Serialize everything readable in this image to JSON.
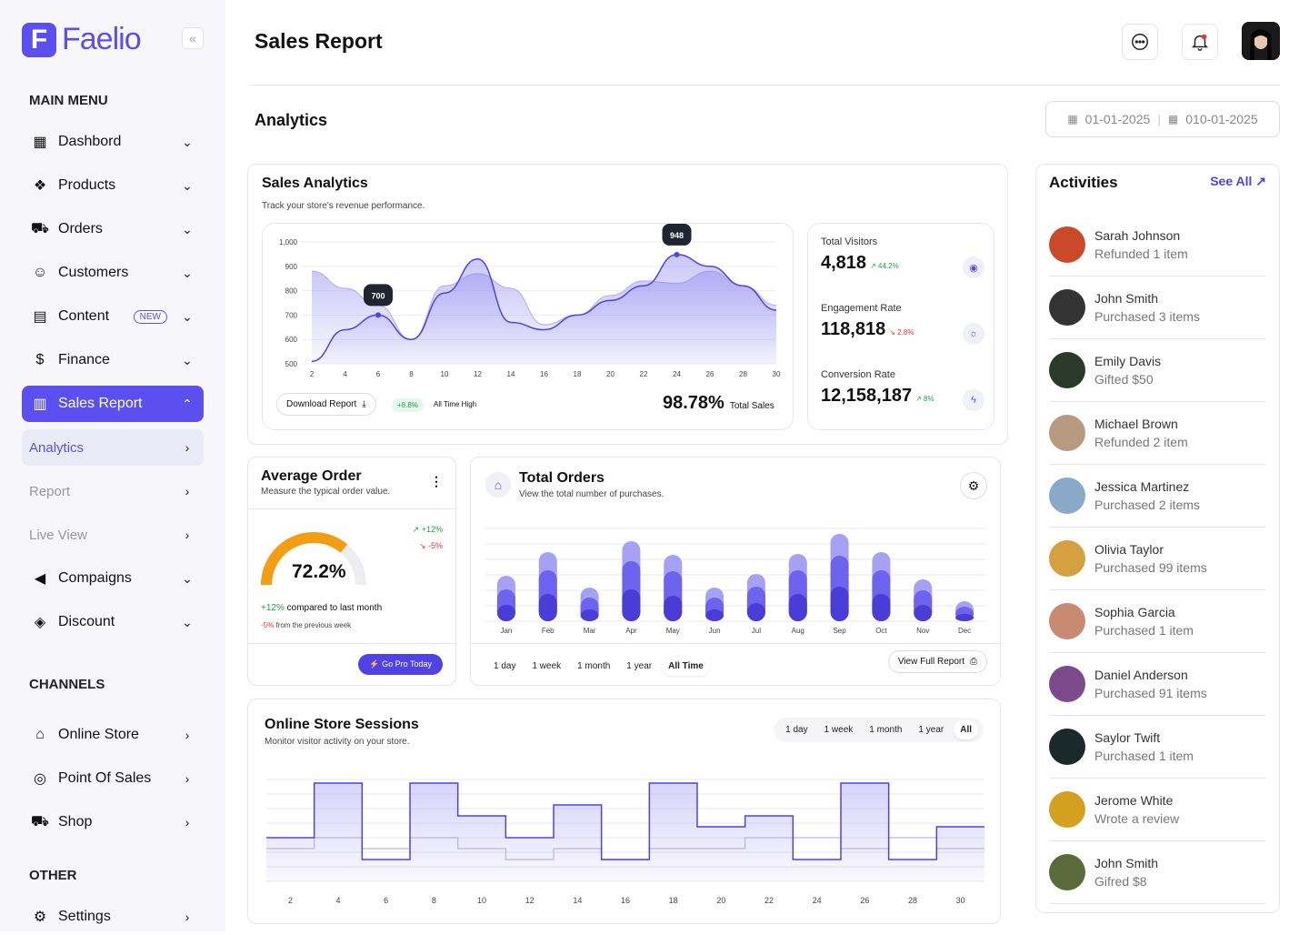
{
  "brand": {
    "name": "Faelio",
    "letter": "F"
  },
  "sidebar": {
    "main_menu_title": "MAIN MENU",
    "items": [
      {
        "label": "Dashbord",
        "icon": "dashboard-icon"
      },
      {
        "label": "Products",
        "icon": "products-icon"
      },
      {
        "label": "Orders",
        "icon": "basket-icon"
      },
      {
        "label": "Customers",
        "icon": "users-icon"
      },
      {
        "label": "Content",
        "icon": "document-icon",
        "badge": "NEW"
      },
      {
        "label": "Finance",
        "icon": "dollar-icon"
      },
      {
        "label": "Sales Report",
        "icon": "chart-icon"
      },
      {
        "label": "Analytics"
      },
      {
        "label": "Report"
      },
      {
        "label": "Live View"
      },
      {
        "label": "Compaigns",
        "icon": "megaphone-icon"
      },
      {
        "label": "Discount",
        "icon": "discount-tag-icon"
      }
    ],
    "channels_title": "CHANNELS",
    "channels": [
      {
        "label": "Online Store",
        "icon": "store-icon"
      },
      {
        "label": "Point Of Sales",
        "icon": "pos-icon"
      },
      {
        "label": "Shop",
        "icon": "cart-icon"
      }
    ],
    "other_title": "OTHER",
    "other": [
      {
        "label": "Settings",
        "icon": "settings-icon"
      }
    ]
  },
  "header": {
    "title": "Sales Report"
  },
  "analytics": {
    "title": "Analytics",
    "date_from": "01-01-2025",
    "date_to": "010-01-2025"
  },
  "sales_analytics": {
    "title": "Sales Analytics",
    "subtitle": "Track your store's revenue performance.",
    "download_label": "Download Report",
    "growth": "+8.8%",
    "all_time": "All Time High",
    "total_value": "98.78%",
    "total_label": "Total Sales",
    "tooltip1": "700",
    "tooltip2": "948"
  },
  "stats": [
    {
      "label": "Total Visitors",
      "value": "4,818",
      "change": "44.2%",
      "dir": "up",
      "icon": "eye-icon"
    },
    {
      "label": "Engagement Rate",
      "value": "118,818",
      "change": "2.8%",
      "dir": "down",
      "icon": "bulb-icon"
    },
    {
      "label": "Conversion Rate",
      "value": "12,158,187",
      "change": "8%",
      "dir": "up",
      "icon": "bolt-icon"
    }
  ],
  "average_order": {
    "title": "Average Order",
    "subtitle": "Measure the typical order value.",
    "value": "72.2%",
    "up": "+12%",
    "down": "-5%",
    "line1_val": "+12%",
    "line1_text": "compared to last month",
    "line2_val": "-5%",
    "line2_text": "from the previous week",
    "cta": "Go Pro Today",
    "progress": 0.722
  },
  "total_orders": {
    "title": "Total Orders",
    "subtitle": "View the total number of purchases.",
    "tabs": [
      "1 day",
      "1 week",
      "1 month",
      "1 year",
      "All Time"
    ],
    "view_full": "View Full Report"
  },
  "sessions": {
    "title": "Online Store Sessions",
    "subtitle": "Monitor visitor activity on your store.",
    "tabs": [
      "1 day",
      "1 week",
      "1 month",
      "1 year",
      "All"
    ]
  },
  "activities": {
    "title": "Activities",
    "see_all": "See All",
    "items": [
      {
        "name": "Sarah Johnson",
        "desc": "Refunded 1 item",
        "color": "#c84a2a"
      },
      {
        "name": "John Smith",
        "desc": "Purchased 3 items",
        "color": "#333"
      },
      {
        "name": "Emily Davis",
        "desc": "Gifted $50",
        "color": "#2a3a2a"
      },
      {
        "name": "Michael Brown",
        "desc": "Refunded 2 item",
        "color": "#b89a80"
      },
      {
        "name": "Jessica Martinez",
        "desc": "Purchased 2 items",
        "color": "#8aa8c8"
      },
      {
        "name": "Olivia Taylor",
        "desc": "Purchased 99 items",
        "color": "#d4a040"
      },
      {
        "name": "Sophia Garcia",
        "desc": "Purchased 1 item",
        "color": "#c88a70"
      },
      {
        "name": "Daniel Anderson",
        "desc": "Purchased 91 items",
        "color": "#7a4a8a"
      },
      {
        "name": "Saylor Twift",
        "desc": "Purchased 1 item",
        "color": "#1a2a2a"
      },
      {
        "name": "Jerome White",
        "desc": "Wrote a review",
        "color": "#d4a020"
      },
      {
        "name": "John Smith",
        "desc": "Gifred $8",
        "color": "#5a6a3a"
      }
    ]
  },
  "chart_data": [
    {
      "type": "area",
      "title": "Sales Analytics",
      "x": [
        2,
        4,
        6,
        8,
        10,
        12,
        14,
        16,
        18,
        20,
        22,
        24,
        26,
        28,
        30
      ],
      "ylim": [
        500,
        1000
      ],
      "yticks": [
        "1,000",
        "900",
        "800",
        "700",
        "600",
        "500"
      ],
      "series": [
        {
          "values": [
            510,
            640,
            700,
            600,
            790,
            930,
            670,
            640,
            700,
            760,
            820,
            948,
            900,
            820,
            720
          ]
        },
        {
          "values": [
            880,
            810,
            740,
            600,
            820,
            870,
            810,
            660,
            700,
            780,
            840,
            830,
            880,
            820,
            740
          ]
        }
      ]
    },
    {
      "type": "bar",
      "title": "Total Orders",
      "categories": [
        "Jan",
        "Feb",
        "Mar",
        "Apr",
        "May",
        "Jun",
        "Jul",
        "Aug",
        "Sep",
        "Oct",
        "Nov",
        "Dec"
      ],
      "series": [
        {
          "values": [
            50,
            76,
            37,
            88,
            73,
            37,
            52,
            74,
            96,
            76,
            46,
            22
          ]
        },
        {
          "values": [
            35,
            56,
            26,
            66,
            55,
            26,
            38,
            56,
            72,
            56,
            34,
            16
          ]
        },
        {
          "values": [
            18,
            30,
            13,
            35,
            28,
            13,
            20,
            30,
            38,
            30,
            18,
            8
          ]
        }
      ]
    },
    {
      "type": "area",
      "title": "Online Store Sessions",
      "x": [
        2,
        4,
        6,
        8,
        10,
        12,
        14,
        16,
        18,
        20,
        22,
        24,
        26,
        28,
        30
      ],
      "series": [
        {
          "values": [
            4,
            9,
            2,
            9,
            6,
            4,
            7,
            2,
            9,
            5,
            6,
            2,
            9,
            2,
            5
          ]
        },
        {
          "values": [
            3,
            4,
            3,
            4,
            3,
            2,
            3,
            2,
            3,
            3,
            4,
            4,
            3,
            4,
            3
          ]
        }
      ]
    }
  ]
}
